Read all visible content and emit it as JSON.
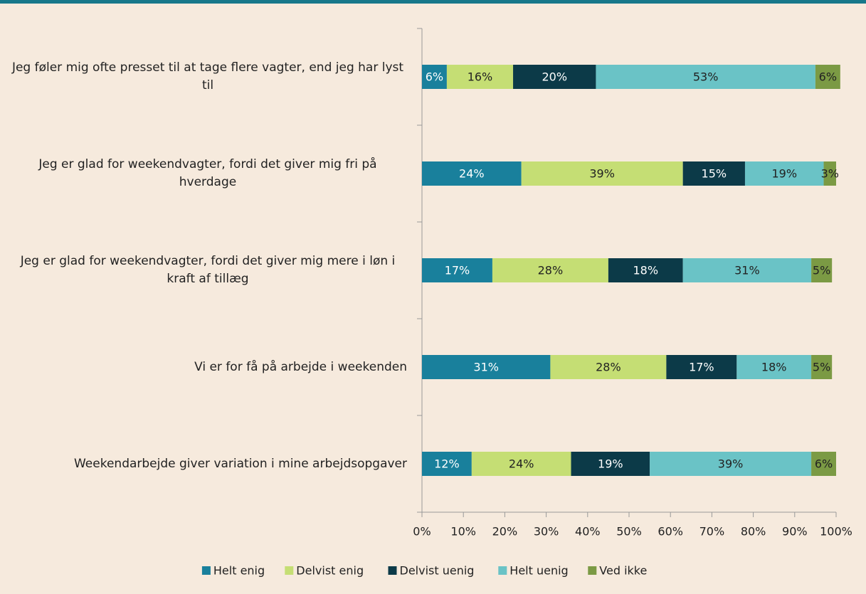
{
  "chart_data": {
    "type": "stacked_bar_horizontal",
    "categories": [
      "Jeg føler mig ofte presset til at tage flere vagter, end jeg har lyst til",
      "Jeg er glad for weekendvagter, fordi det giver mig fri på hverdage",
      "Jeg er glad for weekendvagter, fordi det giver mig mere i løn i kraft af tillæg",
      "Vi er for få på arbejde i weekenden",
      "Weekendarbejde giver variation i mine arbejdsopgaver"
    ],
    "series": [
      {
        "name": "Helt enig",
        "color": "#19809c",
        "values": [
          6,
          24,
          17,
          31,
          12
        ],
        "value_labels": [
          "6%",
          "24%",
          "17%",
          "31%",
          "12%"
        ]
      },
      {
        "name": "Delvist enig",
        "color": "#c5de74",
        "values": [
          16,
          39,
          28,
          28,
          24
        ],
        "value_labels": [
          "16%",
          "39%",
          "28%",
          "28%",
          "24%"
        ]
      },
      {
        "name": "Delvist uenig",
        "color": "#0c3a48",
        "values": [
          20,
          15,
          18,
          17,
          19
        ],
        "value_labels": [
          "20%",
          "15%",
          "18%",
          "17%",
          "19%"
        ]
      },
      {
        "name": "Helt uenig",
        "color": "#6ac3c6",
        "values": [
          53,
          19,
          31,
          18,
          39
        ],
        "value_labels": [
          "53%",
          "19%",
          "31%",
          "18%",
          "39%"
        ]
      },
      {
        "name": "Ved ikke",
        "color": "#7b9a44",
        "values": [
          6,
          3,
          5,
          5,
          6
        ],
        "value_labels": [
          "6%",
          "3%",
          "5%",
          "5%",
          "6%"
        ]
      }
    ],
    "xlim": [
      0,
      100
    ],
    "xticks": [
      {
        "value": 0,
        "label": "0%"
      },
      {
        "value": 10,
        "label": "10%"
      },
      {
        "value": 20,
        "label": "20%"
      },
      {
        "value": 30,
        "label": "30%"
      },
      {
        "value": 40,
        "label": "40%"
      },
      {
        "value": 50,
        "label": "50%"
      },
      {
        "value": 60,
        "label": "60%"
      },
      {
        "value": 70,
        "label": "70%"
      },
      {
        "value": 80,
        "label": "80%"
      },
      {
        "value": 90,
        "label": "90%"
      },
      {
        "value": 100,
        "label": "100%"
      }
    ],
    "legend": "bottom"
  }
}
